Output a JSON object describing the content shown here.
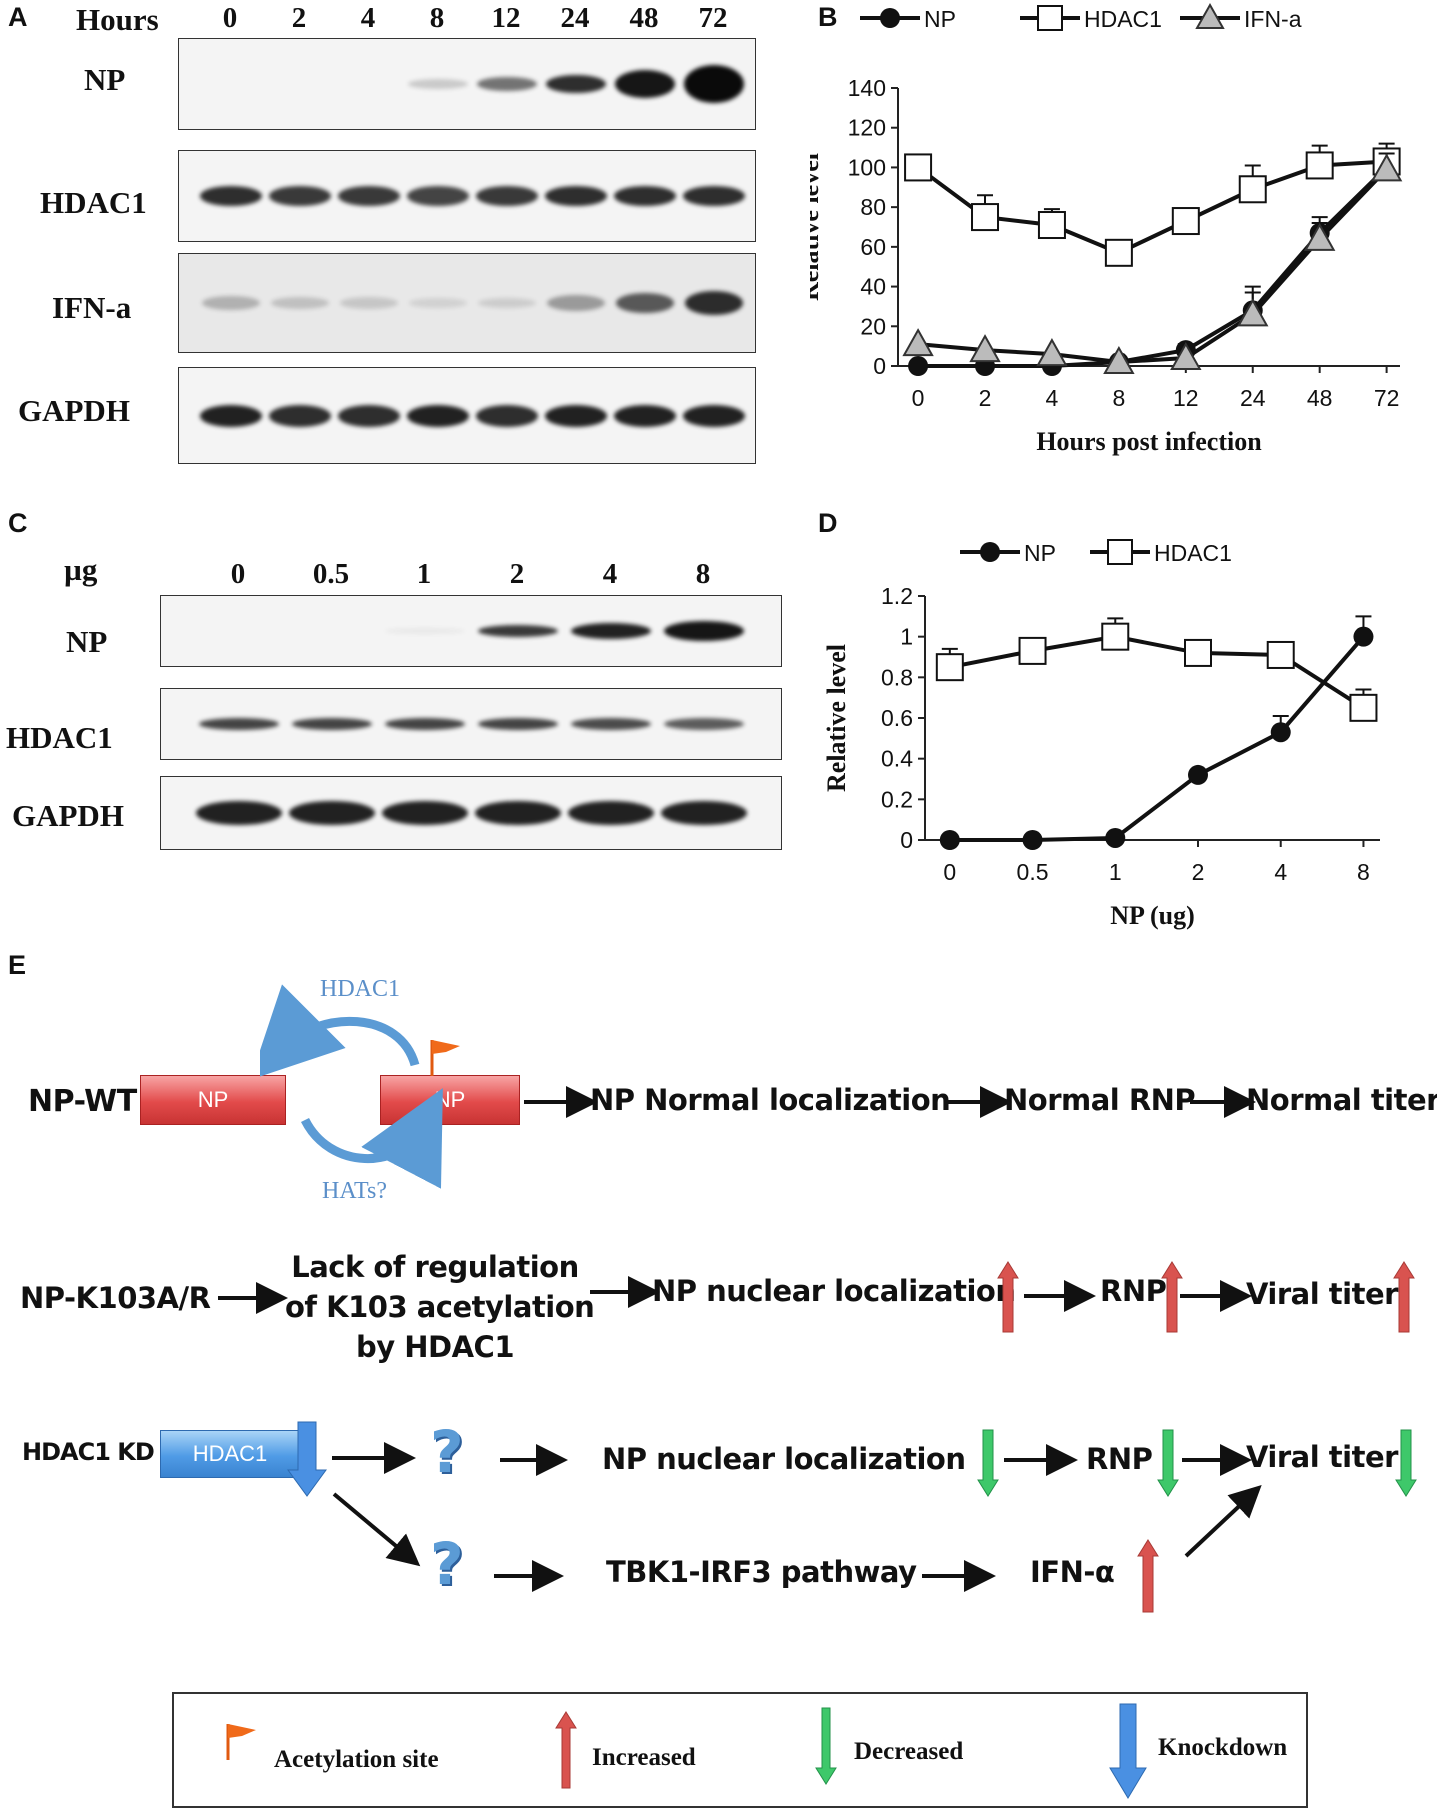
{
  "panels": {
    "a": "A",
    "b": "B",
    "c": "C",
    "d": "D",
    "e": "E"
  },
  "blot_a": {
    "header": "Hours",
    "lanes": [
      "0",
      "2",
      "4",
      "8",
      "12",
      "24",
      "48",
      "72"
    ],
    "rows": [
      "NP",
      "HDAC1",
      "IFN-a",
      "GAPDH"
    ]
  },
  "blot_c": {
    "header": "µg",
    "lanes": [
      "0",
      "0.5",
      "1",
      "2",
      "4",
      "8"
    ],
    "rows": [
      "NP",
      "HDAC1",
      "GAPDH"
    ]
  },
  "chart_data": [
    {
      "type": "line",
      "panel": "B",
      "categories": [
        "0",
        "2",
        "4",
        "8",
        "12",
        "24",
        "48",
        "72"
      ],
      "series": [
        {
          "name": "NP",
          "marker": "filled-circle",
          "values": [
            0,
            0,
            0,
            2,
            8,
            28,
            67,
            100
          ],
          "errors": [
            0,
            0,
            0,
            1,
            3,
            12,
            8,
            8
          ]
        },
        {
          "name": "HDAC1",
          "marker": "open-square",
          "values": [
            100,
            75,
            71,
            57,
            73,
            89,
            101,
            103
          ],
          "errors": [
            0,
            11,
            8,
            0,
            0,
            12,
            10,
            9
          ]
        },
        {
          "name": "IFN-a",
          "marker": "triangle",
          "values": [
            11,
            8,
            6,
            2,
            4,
            26,
            64,
            99
          ],
          "errors": [
            0,
            0,
            0,
            0,
            0,
            11,
            8,
            8
          ]
        }
      ],
      "xlabel": "Hours post infection",
      "ylabel": "Relative level",
      "yticks": [
        "0",
        "20",
        "40",
        "60",
        "80",
        "100",
        "120",
        "140"
      ],
      "ylim": [
        0,
        140
      ],
      "legend": "top"
    },
    {
      "type": "line",
      "panel": "D",
      "categories": [
        "0",
        "0.5",
        "1",
        "2",
        "4",
        "8"
      ],
      "series": [
        {
          "name": "NP",
          "marker": "filled-circle",
          "values": [
            0,
            0,
            0.01,
            0.32,
            0.53,
            1.0
          ],
          "errors": [
            0,
            0,
            0,
            0,
            0.08,
            0.1
          ]
        },
        {
          "name": "HDAC1",
          "marker": "open-square",
          "values": [
            0.85,
            0.93,
            1.0,
            0.92,
            0.91,
            0.65
          ],
          "errors": [
            0.09,
            0,
            0.09,
            0,
            0.06,
            0.09
          ]
        }
      ],
      "xlabel": "NP (ug)",
      "ylabel": "Relative level",
      "yticks": [
        "0",
        "0.2",
        "0.4",
        "0.6",
        "0.8",
        "1",
        "1.2"
      ],
      "ylim": [
        0,
        1.2
      ],
      "legend": "top"
    }
  ],
  "diagram": {
    "row1": {
      "label": "NP-WT",
      "box1": "NP",
      "box2": "NP",
      "arc_top": "HDAC1",
      "arc_bottom": "HATs?",
      "step1": "NP Normal localization",
      "step2": "Normal RNP",
      "step3": "Normal titer"
    },
    "row2": {
      "label": "NP-K103A/R",
      "box_line1": "Lack of regulation",
      "box_line2": "of K103 acetylation",
      "box_line3": "by HDAC1",
      "step1": "NP nuclear localization",
      "step2": "RNP",
      "step3": "Viral titer"
    },
    "row3": {
      "label": "HDAC1 KD",
      "box": "HDAC1",
      "q": "?",
      "step1": "NP nuclear localization",
      "step2": "RNP",
      "step3": "Viral titer",
      "q2": "?",
      "step4": "TBK1-IRF3 pathway",
      "step5": "IFN-α"
    },
    "colors": {
      "increased": "#d9534f",
      "decreased": "#3ec86a",
      "knockdown": "#4a90e2",
      "flag": "#f06a1a"
    }
  },
  "legend": {
    "acetylation": "Acetylation site",
    "increased": "Increased",
    "decreased": "Decreased",
    "knockdown": "Knockdown"
  }
}
